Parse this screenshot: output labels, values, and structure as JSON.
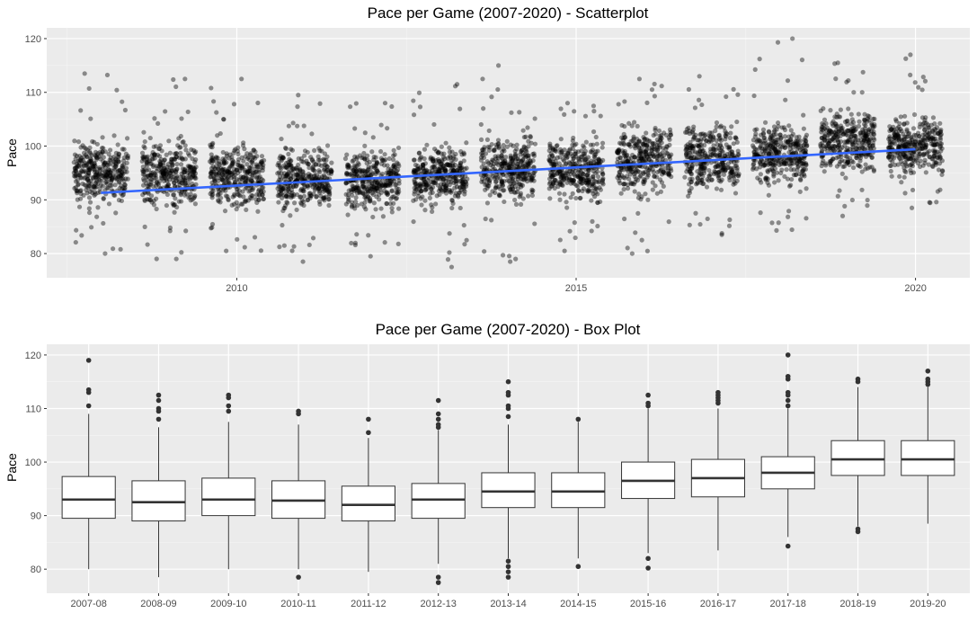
{
  "chart_data": [
    {
      "type": "scatter",
      "title": "Pace per Game (2007-2020) - Scatterplot",
      "xlabel": "",
      "ylabel": "Pace",
      "xlim": [
        2007.2,
        2020.8
      ],
      "ylim": [
        75.5,
        122
      ],
      "x_ticks": [
        2010,
        2015,
        2020
      ],
      "y_ticks": [
        80,
        90,
        100,
        110,
        120
      ],
      "grid": true,
      "point_color": "#000000",
      "trend_color": "#3366FF",
      "trendline": {
        "x": [
          2008,
          2020
        ],
        "y": [
          91.3,
          99.4
        ]
      },
      "series": [
        {
          "x": [
            2008,
            2009,
            2010,
            2011,
            2012,
            2013,
            2014,
            2015,
            2016,
            2017,
            2018,
            2019,
            2020
          ],
          "core_range": [
            [
              86,
              104
            ],
            [
              85,
              104
            ],
            [
              86,
              103
            ],
            [
              86,
              102
            ],
            [
              85,
              102
            ],
            [
              86,
              103
            ],
            [
              87,
              105
            ],
            [
              87,
              104
            ],
            [
              88,
              107
            ],
            [
              89,
              107
            ],
            [
              90,
              107
            ],
            [
              92,
              110
            ],
            [
              92,
              108
            ]
          ],
          "spread_range": [
            [
              80,
              113.5
            ],
            [
              79,
              112.5
            ],
            [
              80.5,
              112.5
            ],
            [
              78.5,
              109.5
            ],
            [
              79.5,
              108
            ],
            [
              77.5,
              111.5
            ],
            [
              78.5,
              115
            ],
            [
              80.5,
              108
            ],
            [
              80,
              112.5
            ],
            [
              83.5,
              113
            ],
            [
              84.3,
              120
            ],
            [
              87,
              115.5
            ],
            [
              88.5,
              117
            ]
          ]
        }
      ]
    },
    {
      "type": "box",
      "title": "Pace per Game (2007-2020) - Box Plot",
      "xlabel": "",
      "ylabel": "Pace",
      "ylim": [
        75.5,
        122
      ],
      "y_ticks": [
        80,
        90,
        100,
        110,
        120
      ],
      "grid": true,
      "categories": [
        "2007-08",
        "2008-09",
        "2009-10",
        "2010-11",
        "2011-12",
        "2012-13",
        "2013-14",
        "2014-15",
        "2015-16",
        "2016-17",
        "2017-18",
        "2018-19",
        "2019-20"
      ],
      "boxes": [
        {
          "q1": 89.5,
          "median": 93.0,
          "q3": 97.3,
          "wlo": 80.0,
          "whi": 109.0,
          "outliers": [
            110.5,
            113.0,
            113.5,
            119.0
          ]
        },
        {
          "q1": 89.0,
          "median": 92.5,
          "q3": 96.5,
          "wlo": 78.5,
          "whi": 106.5,
          "outliers": [
            108.0,
            109.5,
            110.0,
            111.5,
            112.5
          ]
        },
        {
          "q1": 90.0,
          "median": 93.0,
          "q3": 97.0,
          "wlo": 80.0,
          "whi": 107.5,
          "outliers": [
            109.5,
            110.5,
            112.0,
            112.5
          ]
        },
        {
          "q1": 89.5,
          "median": 92.8,
          "q3": 96.5,
          "wlo": 80.0,
          "whi": 107.0,
          "outliers": [
            78.5,
            109.0,
            109.5
          ]
        },
        {
          "q1": 89.0,
          "median": 92.0,
          "q3": 95.5,
          "wlo": 79.5,
          "whi": 104.5,
          "outliers": [
            105.5,
            108.0
          ]
        },
        {
          "q1": 89.5,
          "median": 93.0,
          "q3": 96.0,
          "wlo": 81.0,
          "whi": 106.0,
          "outliers": [
            77.5,
            78.5,
            106.5,
            107.0,
            108.0,
            109.0,
            111.5
          ]
        },
        {
          "q1": 91.5,
          "median": 94.5,
          "q3": 98.0,
          "wlo": 82.0,
          "whi": 107.0,
          "outliers": [
            78.5,
            79.5,
            80.5,
            81.5,
            108.5,
            110.0,
            110.5,
            112.5,
            113.0,
            115.0
          ]
        },
        {
          "q1": 91.5,
          "median": 94.5,
          "q3": 98.0,
          "wlo": 82.0,
          "whi": 107.5,
          "outliers": [
            80.5,
            108.0
          ]
        },
        {
          "q1": 93.2,
          "median": 96.5,
          "q3": 100.0,
          "wlo": 83.0,
          "whi": 110.0,
          "outliers": [
            80.2,
            82.0,
            110.5,
            111.0,
            112.5
          ]
        },
        {
          "q1": 93.5,
          "median": 97.0,
          "q3": 100.5,
          "wlo": 83.5,
          "whi": 110.0,
          "outliers": [
            111.0,
            111.5,
            112.0,
            112.5,
            113.0
          ]
        },
        {
          "q1": 95.0,
          "median": 98.0,
          "q3": 101.0,
          "wlo": 86.0,
          "whi": 110.0,
          "outliers": [
            84.3,
            110.5,
            111.5,
            112.5,
            113.0,
            115.5,
            116.0,
            120.0
          ]
        },
        {
          "q1": 97.5,
          "median": 100.5,
          "q3": 104.0,
          "wlo": 88.0,
          "whi": 114.0,
          "outliers": [
            87.0,
            87.5,
            115.0,
            115.5
          ]
        },
        {
          "q1": 97.5,
          "median": 100.5,
          "q3": 104.0,
          "wlo": 88.5,
          "whi": 114.0,
          "outliers": [
            114.5,
            115.0,
            115.5,
            117.0
          ]
        }
      ]
    }
  ]
}
